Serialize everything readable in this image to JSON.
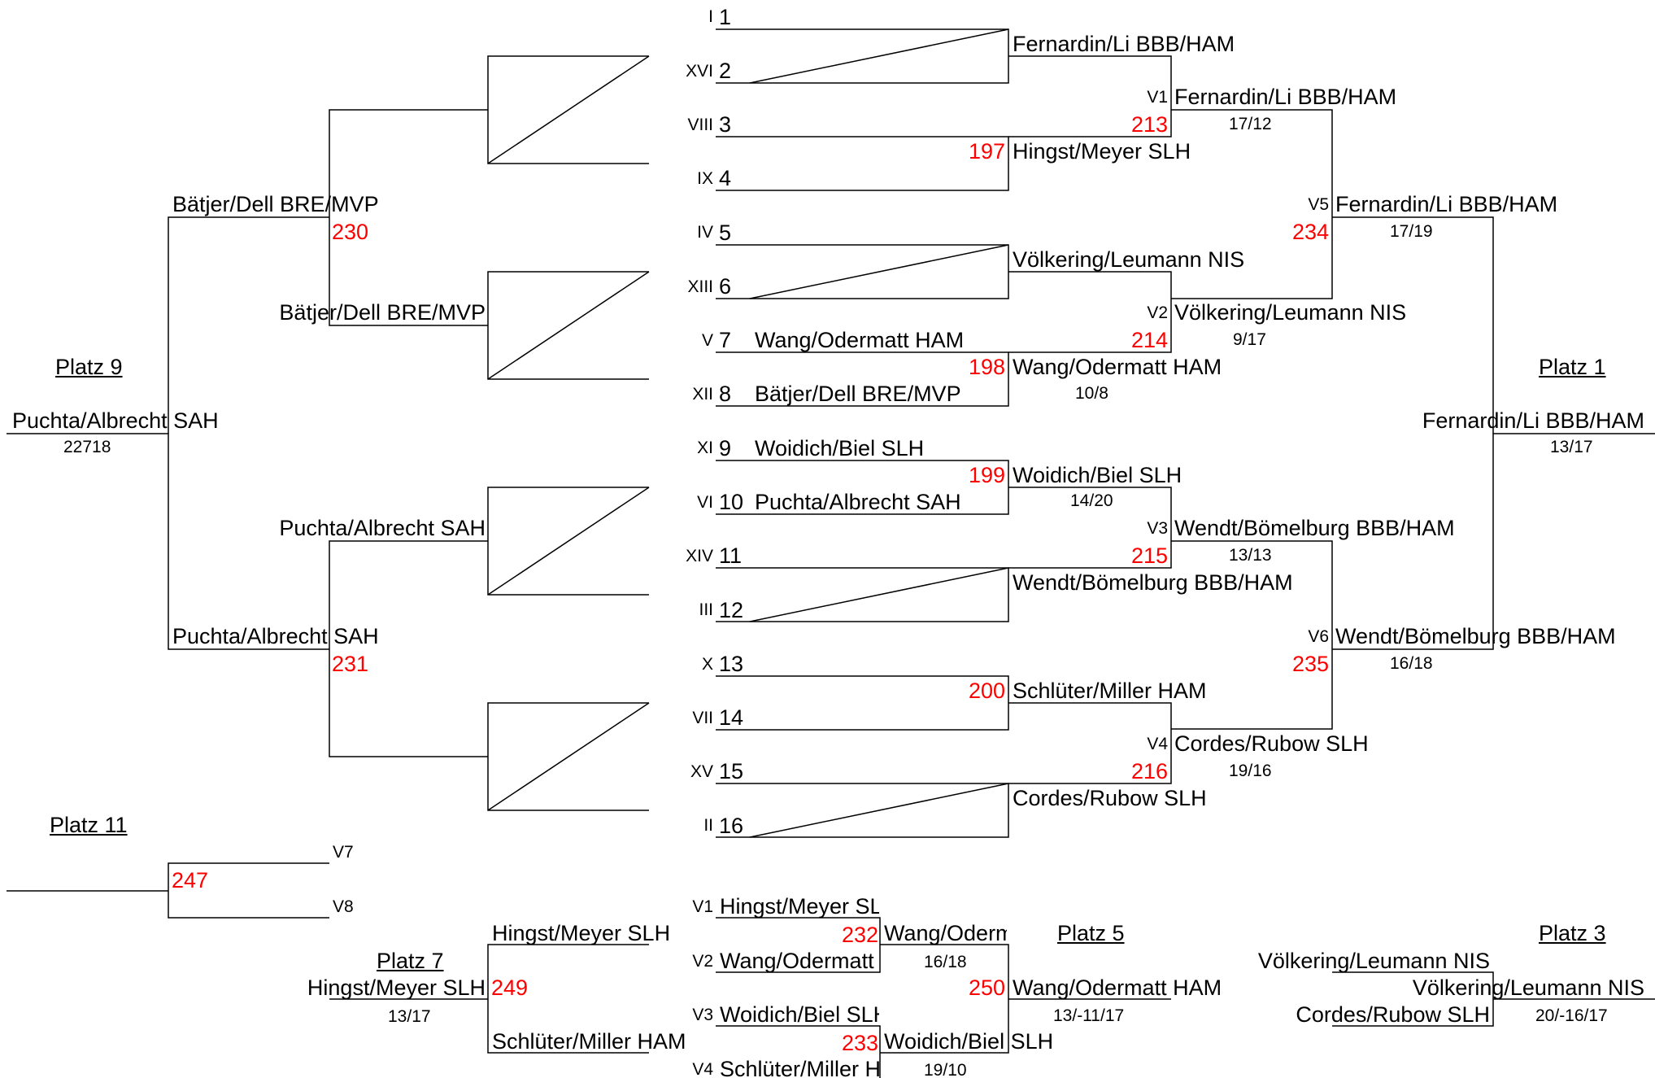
{
  "labels": {
    "seed_numbers": [
      "1",
      "2",
      "3",
      "4",
      "5",
      "6",
      "7",
      "8",
      "9",
      "10",
      "11",
      "12",
      "13",
      "14",
      "15",
      "16"
    ],
    "seed_roman": [
      "I",
      "XVI",
      "VIII",
      "IX",
      "IV",
      "XIII",
      "V",
      "XII",
      "XI",
      "VI",
      "XIV",
      "III",
      "X",
      "VII",
      "XV",
      "II"
    ],
    "placement_headers": {
      "platz1": "Platz 1",
      "platz3": "Platz 3",
      "platz5": "Platz 5",
      "platz7": "Platz 7",
      "platz9": "Platz 9",
      "platz11": "Platz 11"
    },
    "round_codes": {
      "v1": "V1",
      "v2": "V2",
      "v3": "V3",
      "v4": "V4",
      "v5": "V5",
      "v6": "V6",
      "v7": "V7",
      "v8": "V8"
    }
  },
  "first_round_entries": {
    "s7": "Wang/Odermatt HAM",
    "s8": "Bätjer/Dell BRE/MVP",
    "s9": "Woidich/Biel SLH",
    "s10": "Puchta/Albrecht SAH"
  },
  "round1_results": {
    "r1": "Fernardin/Li BBB/HAM",
    "r2": "Hingst/Meyer SLH",
    "r3": "Völkering/Leumann NIS",
    "r4": "Wang/Odermatt HAM",
    "r5": "Woidich/Biel SLH",
    "r6": "Wendt/Bömelburg BBB/HAM",
    "r7": "Schlüter/Miller HAM",
    "r8": "Cordes/Rubow SLH"
  },
  "quarterfinals": {
    "v1": "Fernardin/Li BBB/HAM",
    "v2": "Völkering/Leumann NIS",
    "v3": "Wendt/Bömelburg BBB/HAM",
    "v4": "Cordes/Rubow SLH"
  },
  "semifinals": {
    "v5": "Fernardin/Li BBB/HAM",
    "v6": "Wendt/Bömelburg BBB/HAM"
  },
  "final_winner": "Fernardin/Li BBB/HAM",
  "scores": {
    "m198": "10/8",
    "m199": "14/20",
    "v1": "17/12",
    "v2": "9/17",
    "v3": "13/13",
    "v4": "19/16",
    "v5": "17/19",
    "v6": "16/18",
    "final": "13/17",
    "platz9": "22718",
    "m232": "16/18",
    "m233": "19/10",
    "platz7": "13/17",
    "platz5": "13/-11/17",
    "platz3": "20/-16/17"
  },
  "match_numbers": {
    "m197": "197",
    "m198": "198",
    "m199": "199",
    "m200": "200",
    "m213": "213",
    "m214": "214",
    "m215": "215",
    "m216": "216",
    "m234": "234",
    "m235": "235",
    "m230": "230",
    "m231": "231",
    "m247": "247",
    "m232": "232",
    "m233": "233",
    "m249": "249",
    "m250": "250"
  },
  "consolation": {
    "a1": "Bätjer/Dell BRE/MVP",
    "a3": "Puchta/Albrecht SAH",
    "b1": "Bätjer/Dell BRE/MVP",
    "b2": "Puchta/Albrecht SAH",
    "platz9_winner": "Puchta/Albrecht SAH"
  },
  "platz5_bracket": {
    "v1_team": "Hingst/Meyer SLH",
    "v2_team": "Wang/Odermatt HAM",
    "v3_team": "Woidich/Biel SLH",
    "v4_team": "Schlüter/Miller HAM",
    "m232_winner": "Wang/Odermatt HAM",
    "m233_winner": "Woidich/Biel SLH",
    "platz5_winner": "Wang/Odermatt HAM"
  },
  "platz7_bracket": {
    "top": "Hingst/Meyer SLH",
    "bottom": "Schlüter/Miller HAM",
    "winner": "Hingst/Meyer SLH"
  },
  "platz3_bracket": {
    "top": "Völkering/Leumann NIS",
    "bottom": "Cordes/Rubow SLH",
    "winner": "Völkering/Leumann NIS"
  },
  "colors": {
    "line": "#000000",
    "text": "#000000",
    "match_number": "#ff0000",
    "background": "#ffffff"
  }
}
